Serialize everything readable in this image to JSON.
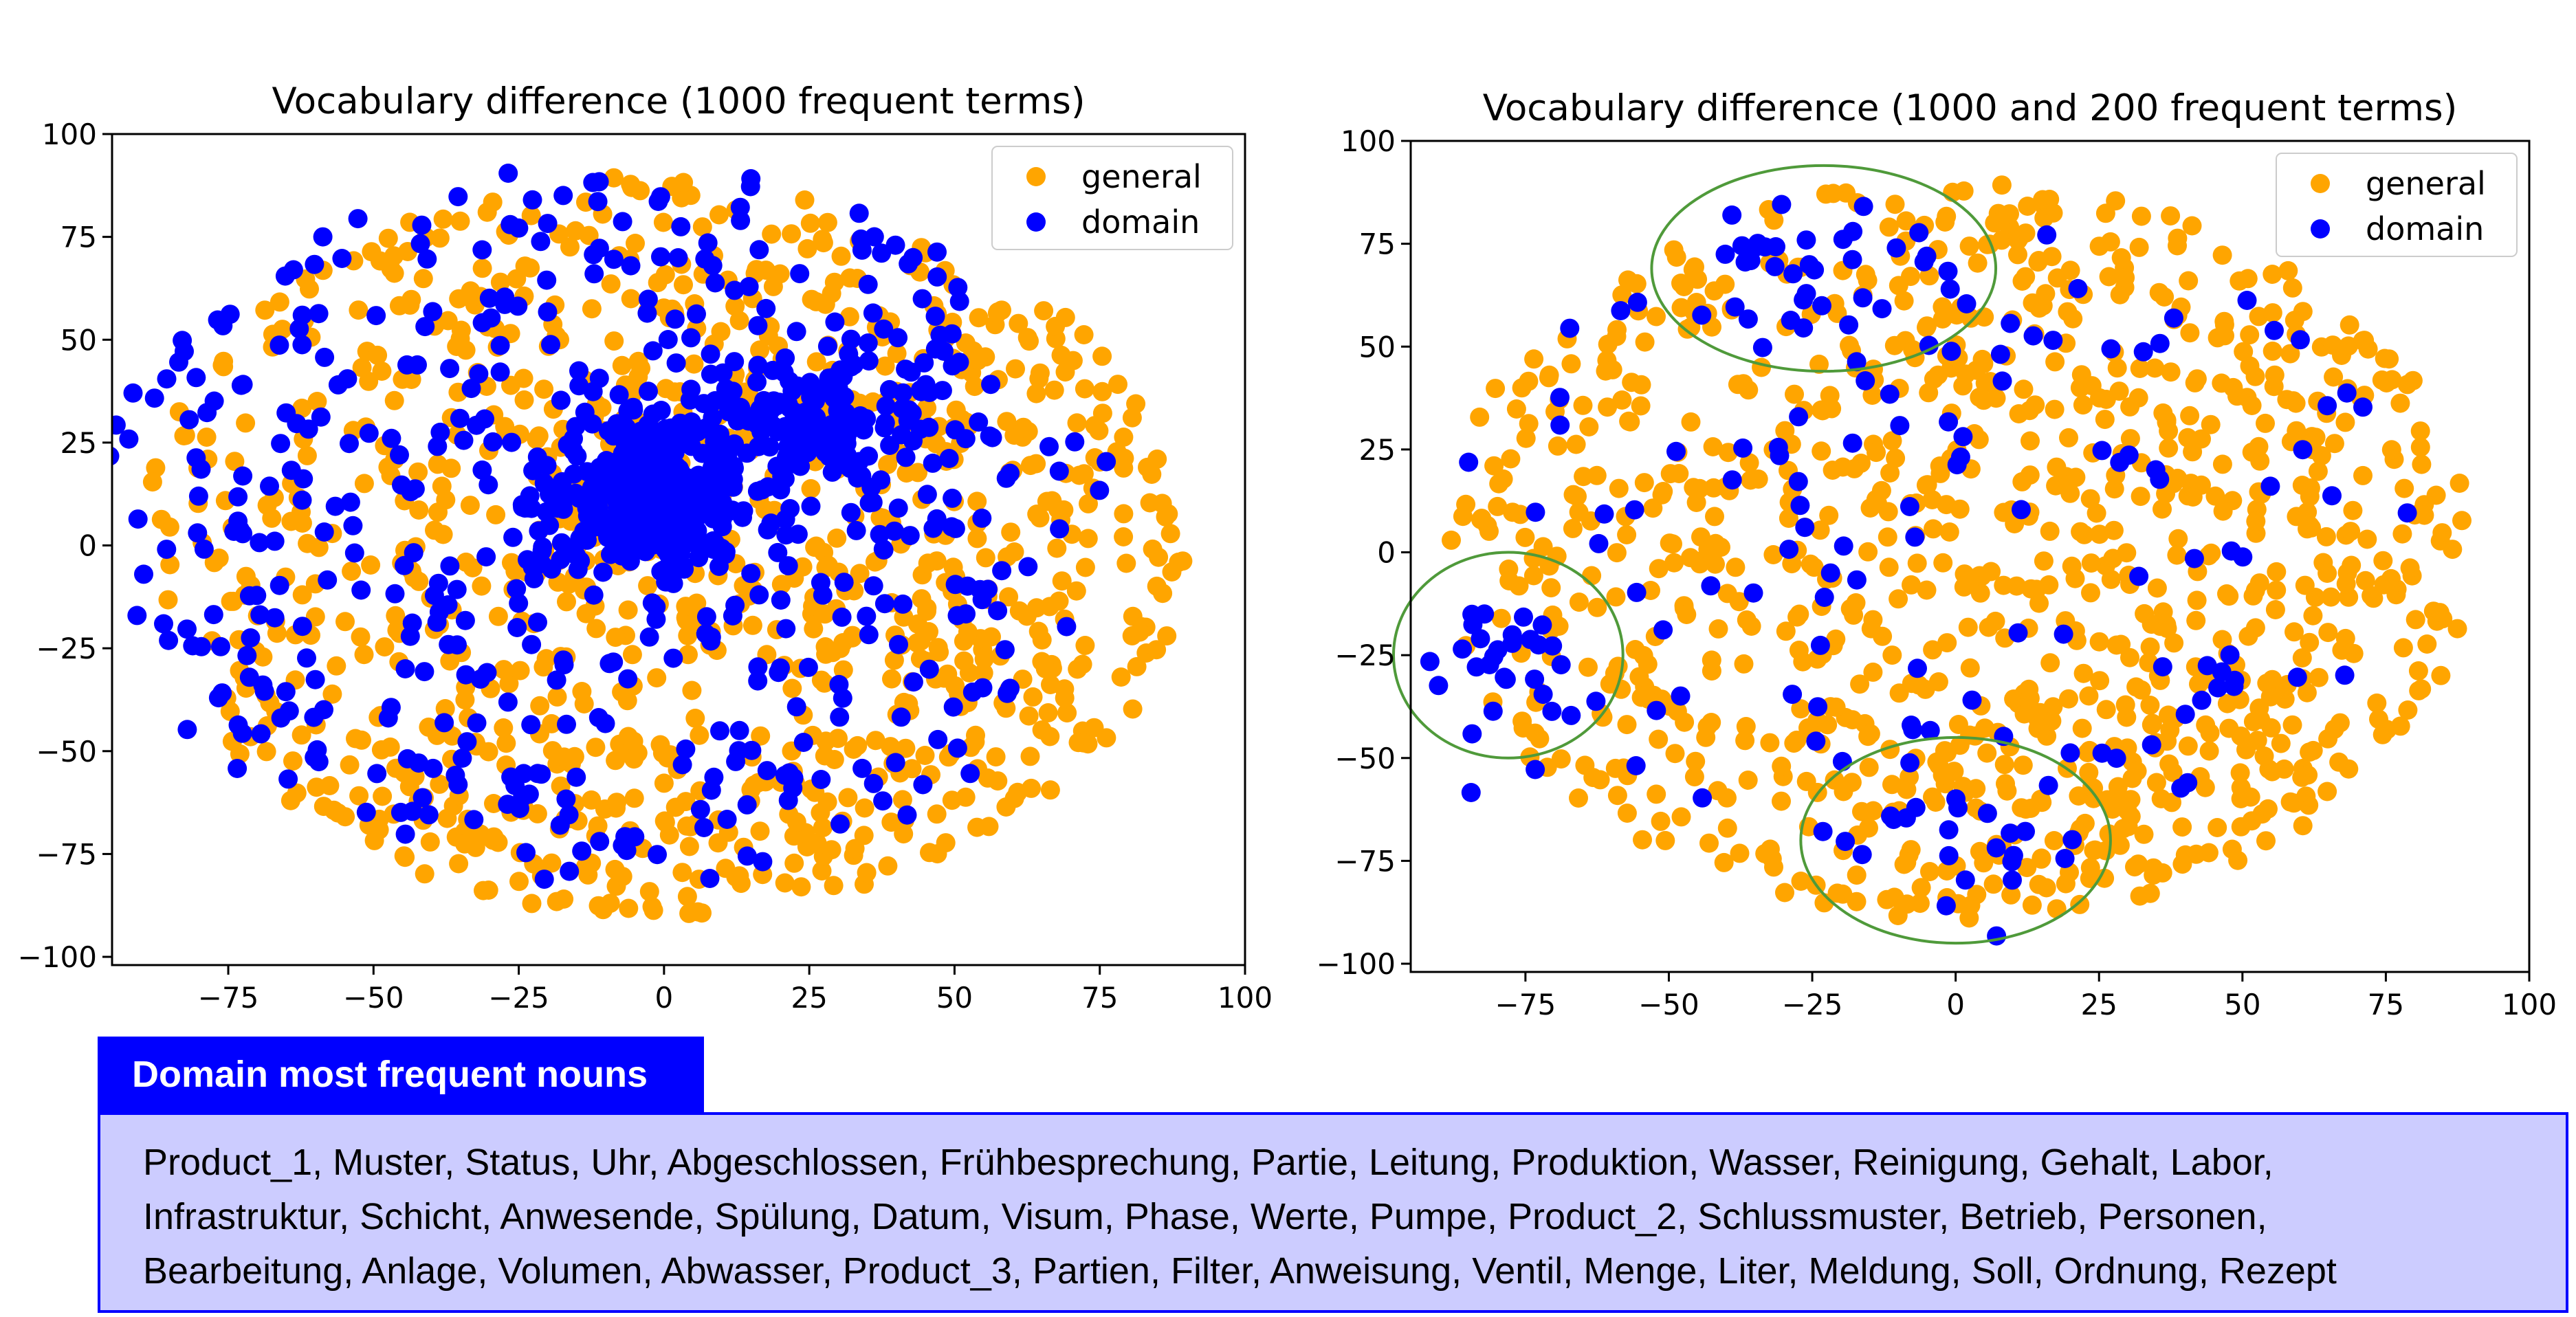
{
  "chart_data": [
    {
      "type": "scatter",
      "title": "Vocabulary difference (1000 frequent terms)",
      "xlabel": "",
      "ylabel": "",
      "xlim": [
        -95,
        100
      ],
      "ylim": [
        -102,
        100
      ],
      "xticks": [
        -75,
        -50,
        -25,
        0,
        25,
        50,
        75,
        100
      ],
      "yticks": [
        -100,
        -75,
        -50,
        -25,
        0,
        25,
        50,
        75,
        100
      ],
      "legend": "top-right",
      "series": [
        {
          "name": "general",
          "color": "#ffa500",
          "n_points": 1000,
          "spread": "broad ellipse over x -90..92, y -92..92, denser toward right and bottom"
        },
        {
          "name": "domain",
          "color": "#0000ff",
          "n_points": 1000,
          "spread": "dense cluster near x -5..25, y 0..40, scattered toward upper and left"
        }
      ]
    },
    {
      "type": "scatter",
      "title": "Vocabulary difference (1000 and 200 frequent terms)",
      "xlabel": "",
      "ylabel": "",
      "xlim": [
        -95,
        100
      ],
      "ylim": [
        -102,
        100
      ],
      "xticks": [
        -75,
        -50,
        -25,
        0,
        25,
        50,
        75,
        100
      ],
      "yticks": [
        -100,
        -75,
        -50,
        -25,
        0,
        25,
        50,
        75,
        100
      ],
      "legend": "top-right",
      "series": [
        {
          "name": "general",
          "color": "#ffa500",
          "n_points": 1000
        },
        {
          "name": "domain",
          "color": "#0000ff",
          "n_points": 200
        }
      ],
      "annotations": [
        {
          "shape": "ellipse",
          "color": "#4f9a3a",
          "center": [
            -23,
            69
          ],
          "radius": [
            30,
            25
          ]
        },
        {
          "shape": "ellipse",
          "color": "#4f9a3a",
          "center": [
            -78,
            -25
          ],
          "radius": [
            20,
            25
          ]
        },
        {
          "shape": "ellipse",
          "color": "#4f9a3a",
          "center": [
            0,
            -70
          ],
          "radius": [
            27,
            25
          ]
        }
      ]
    }
  ],
  "nouns_panel": {
    "title": "Domain most frequent nouns",
    "lines": [
      "Product_1, Muster, Status, Uhr, Abgeschlossen, Frühbesprechung, Partie, Leitung, Produktion, Wasser, Reinigung, Gehalt, Labor,",
      "Infrastruktur, Schicht, Anwesende, Spülung, Datum, Visum, Phase, Werte, Pumpe, Product_2, Schlussmuster, Betrieb, Personen,",
      "Bearbeitung, Anlage, Volumen, Abwasser, Product_3, Partien, Filter, Anweisung, Ventil, Menge, Liter, Meldung, Soll, Ordnung, Rezept"
    ]
  }
}
